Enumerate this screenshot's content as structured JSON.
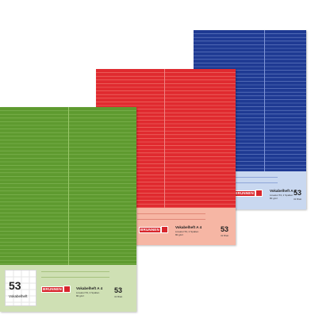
{
  "products": [
    {
      "id": "blue",
      "color": "#1f3a93",
      "label_color": "#c9d8f0",
      "brand": "BRUNNEN",
      "title": "Vokabelheft A 4",
      "subtitle_1": "Lineatur 53, 2 Spalten",
      "subtitle_2": "80 g/m²",
      "number": "53",
      "number_sub": "32 Blatt"
    },
    {
      "id": "red",
      "color": "#e02a2f",
      "label_color": "#f6b6a4",
      "brand": "BRUNNEN",
      "title": "Vokabelheft A 4",
      "subtitle_1": "Lineatur 53, 2 Spalten",
      "subtitle_2": "80 g/m²",
      "number": "53",
      "number_sub": "32 Blatt"
    },
    {
      "id": "green",
      "color": "#5e9a2f",
      "label_color": "#cfe0b4",
      "brand": "BRUNNEN",
      "title": "Vokabelheft A 4",
      "subtitle_1": "Lineatur 53, 2 Spalten",
      "subtitle_2": "80 g/m²",
      "number": "53",
      "number_sub": "32 Blatt",
      "sticker_number": "53",
      "sticker_label": "Vokabelheft"
    }
  ]
}
